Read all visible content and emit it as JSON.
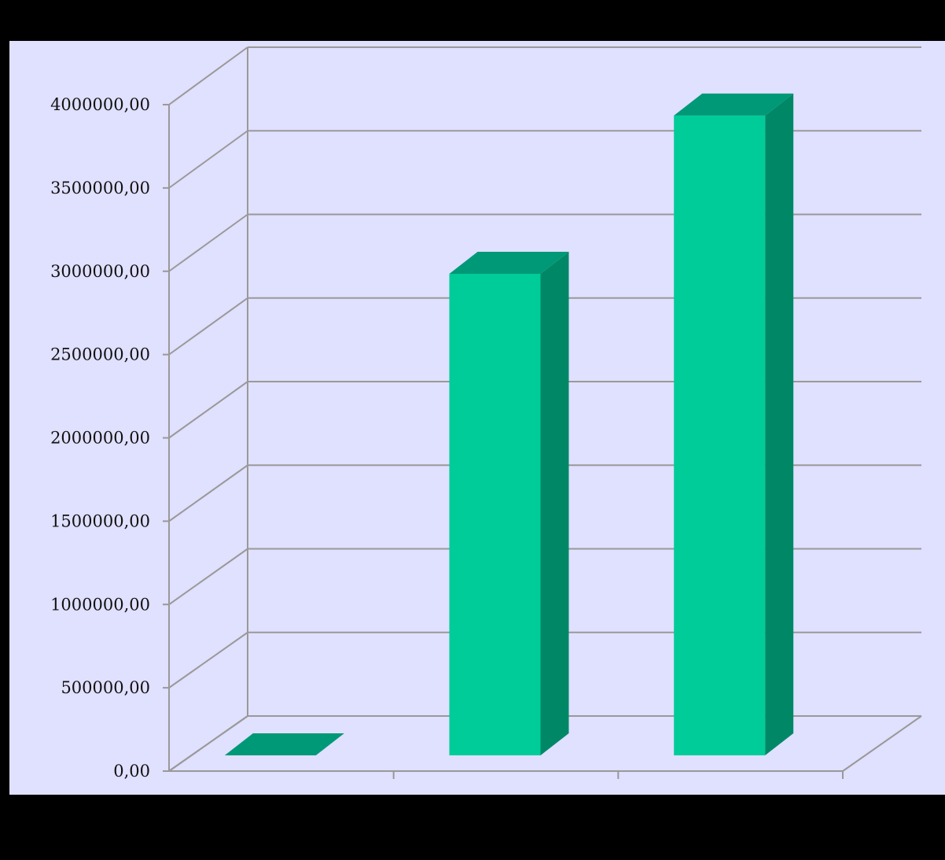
{
  "chart_data": {
    "type": "bar",
    "style": "3d-column",
    "categories": [
      "",
      "",
      ""
    ],
    "values": [
      0,
      2890000,
      3840000
    ],
    "y_tick_labels": [
      "0,00",
      "500000,00",
      "1000000,00",
      "1500000,00",
      "2000000,00",
      "2500000,00",
      "3000000,00",
      "3500000,00",
      "4000000,00"
    ],
    "ylim": [
      0,
      4000000
    ],
    "grid": true,
    "legend": "none",
    "colors": {
      "background": "#e0e0ff",
      "bar_front": "#00cc99",
      "bar_top": "#009977",
      "bar_side": "#008866",
      "gridline": "#999999",
      "frame": "#000000"
    }
  }
}
